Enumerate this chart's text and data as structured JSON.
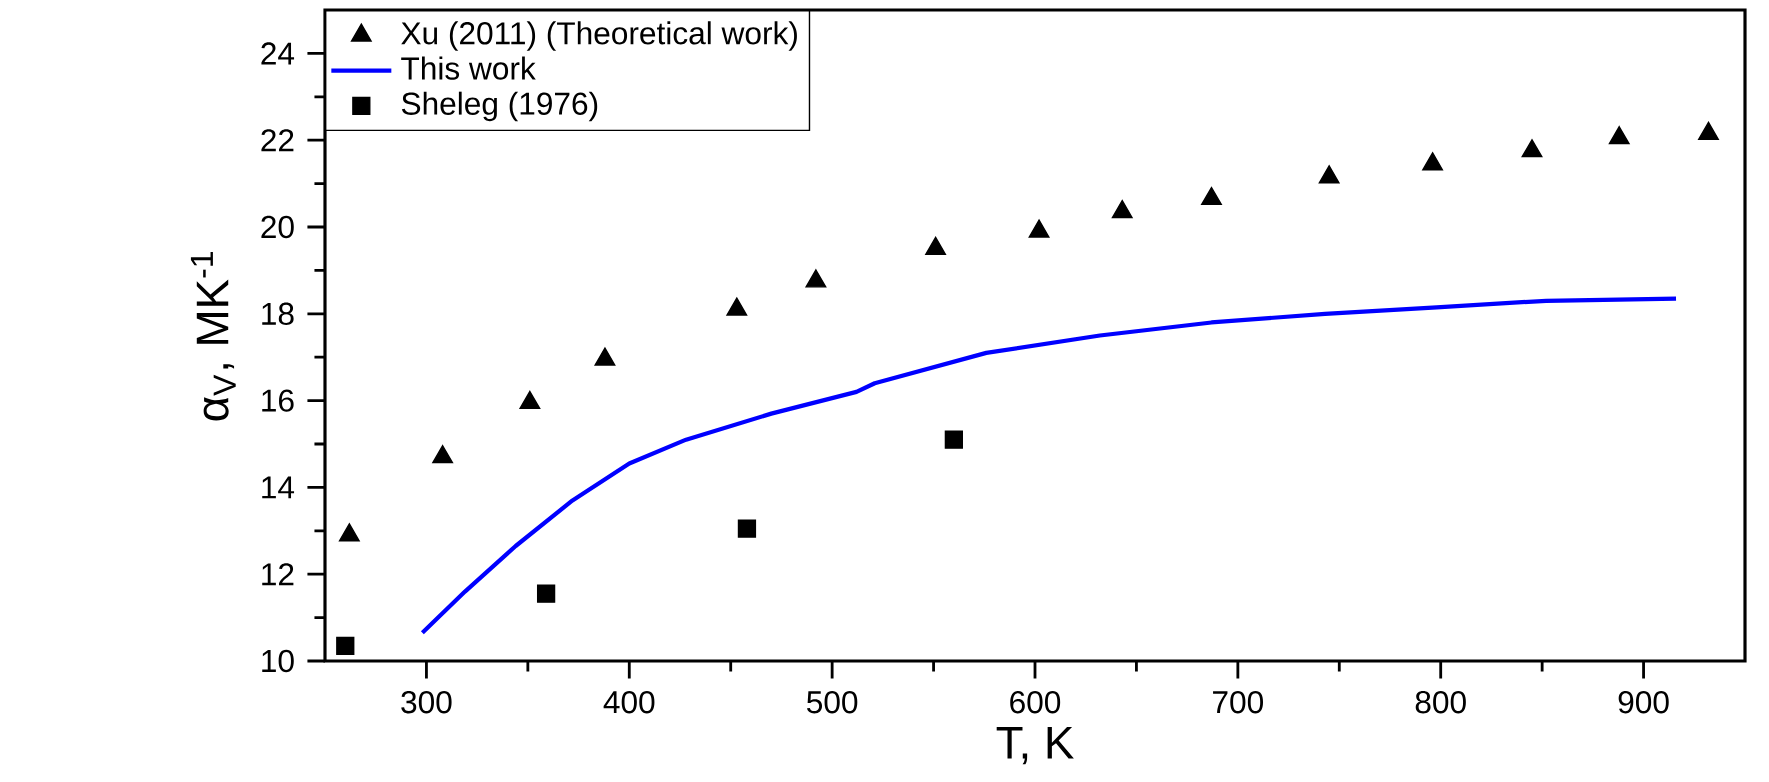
{
  "chart_data": {
    "type": "scatter",
    "xlabel": "T, K",
    "ylabel": "α$_{V}$, MK$^{-1}$",
    "xlim": [
      250,
      950
    ],
    "ylim": [
      10,
      25
    ],
    "xticks": [
      300,
      400,
      500,
      600,
      700,
      800,
      900
    ],
    "yticks": [
      10,
      12,
      14,
      16,
      18,
      20,
      22,
      24
    ],
    "legend": "top left",
    "grid": false,
    "series": [
      {
        "name": "Xu (2011) (Theoretical work)",
        "marker": "triangle",
        "color": "#000000",
        "x": [
          262,
          308,
          351,
          388,
          453,
          492,
          551,
          602,
          643,
          687,
          745,
          796,
          845,
          888,
          932
        ],
        "values": [
          12.9,
          14.7,
          15.95,
          16.95,
          18.1,
          18.75,
          19.5,
          19.9,
          20.35,
          20.65,
          21.15,
          21.45,
          21.75,
          22.05,
          22.15
        ]
      },
      {
        "name": "This work",
        "type": "line",
        "marker": "none",
        "color": "#0000ff",
        "x": [
          298,
          319,
          344,
          372,
          400,
          428,
          470,
          512,
          521,
          576,
          632,
          687,
          743,
          798,
          852,
          916
        ],
        "values": [
          10.65,
          11.6,
          12.65,
          13.7,
          14.55,
          15.1,
          15.7,
          16.2,
          16.4,
          17.1,
          17.5,
          17.8,
          18.0,
          18.15,
          18.3,
          18.35
        ]
      },
      {
        "name": "Sheleg (1976)",
        "marker": "square",
        "color": "#000000",
        "x": [
          260,
          359,
          458,
          560
        ],
        "values": [
          10.35,
          11.55,
          13.05,
          15.1
        ]
      }
    ]
  }
}
